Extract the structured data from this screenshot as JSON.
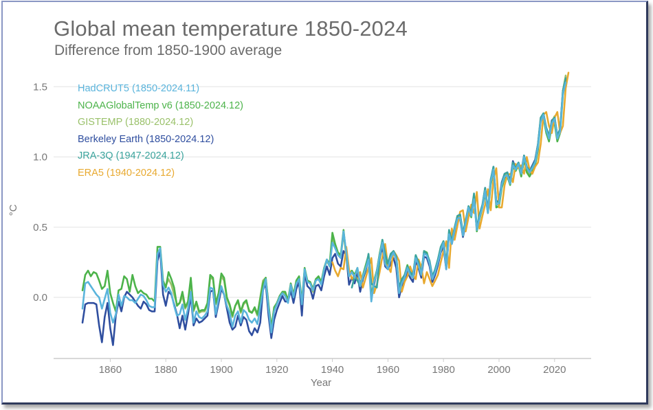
{
  "chart_data": {
    "type": "line",
    "title": "Global mean temperature 1850-2024",
    "subtitle": "Difference from 1850-1900 average",
    "xlabel": "Year",
    "ylabel": "°C",
    "xlim": [
      1846,
      2030
    ],
    "ylim": [
      -0.44,
      1.62
    ],
    "xticks": [
      1860,
      1880,
      1900,
      1920,
      1940,
      1960,
      1980,
      2000,
      2020
    ],
    "yticks": [
      0.0,
      0.5,
      1.0,
      1.5
    ],
    "ytick_labels": [
      "0.0",
      "0.5",
      "1.0",
      "1.5"
    ],
    "grid": "horizontal",
    "legend_position": "top-left",
    "series": [
      {
        "name": "HadCRUT5 (1850-2024.11)",
        "color": "#5ab4dc",
        "start": 1850,
        "values": [
          -0.08,
          0.1,
          0.11,
          0.08,
          0.05,
          0.02,
          0.0,
          -0.08,
          -0.01,
          0.06,
          -0.11,
          -0.18,
          -0.12,
          0.02,
          -0.06,
          0.01,
          0.0,
          -0.02,
          -0.02,
          -0.04,
          -0.01,
          0.02,
          0.01,
          -0.02,
          -0.06,
          -0.07,
          -0.07,
          0.31,
          0.35,
          0.09,
          0.04,
          0.07,
          0.03,
          -0.06,
          -0.13,
          -0.12,
          -0.05,
          -0.16,
          -0.08,
          0.04,
          -0.18,
          -0.1,
          -0.14,
          -0.15,
          -0.13,
          -0.1,
          0.07,
          0.06,
          -0.12,
          -0.01,
          0.08,
          0.02,
          -0.06,
          -0.11,
          -0.21,
          -0.13,
          -0.1,
          -0.18,
          -0.09,
          -0.11,
          -0.16,
          -0.18,
          -0.15,
          -0.19,
          -0.07,
          0.05,
          0.13,
          -0.08,
          -0.25,
          -0.1,
          -0.05,
          0.0,
          0.03,
          0.01,
          -0.04,
          0.09,
          0.0,
          0.1,
          0.13,
          -0.05,
          0.2,
          0.11,
          0.1,
          0.05,
          0.12,
          0.13,
          0.09,
          0.2,
          0.27,
          0.22,
          0.39,
          0.35,
          0.3,
          0.28,
          0.47,
          0.32,
          0.15,
          0.18,
          0.14,
          0.21,
          0.08,
          0.15,
          0.21,
          0.27,
          -0.03,
          0.11,
          0.18,
          0.3,
          0.39,
          0.24,
          0.2,
          0.28,
          0.32,
          0.27,
          0.03,
          0.1,
          0.14,
          0.21,
          0.16,
          0.14,
          0.28,
          0.23,
          0.16,
          0.31,
          0.3,
          0.24,
          0.13,
          0.18,
          0.25,
          0.33,
          0.39,
          0.2,
          0.45,
          0.38,
          0.48,
          0.56,
          0.57,
          0.44,
          0.53,
          0.64,
          0.58,
          0.7,
          0.48,
          0.57,
          0.64,
          0.76,
          0.6,
          0.82,
          0.91,
          0.66,
          0.67,
          0.8,
          0.86,
          0.87,
          0.81,
          0.94,
          0.91,
          0.95,
          0.88,
          1.0,
          0.92,
          0.89,
          0.92,
          0.96,
          1.07,
          1.25,
          1.3,
          1.19,
          1.13,
          1.24,
          1.27,
          1.13,
          1.18,
          1.45,
          1.53
        ]
      },
      {
        "name": "NOAAGlobalTemp v6 (1850-2024.12)",
        "color": "#4cb34a",
        "start": 1850,
        "values": [
          0.05,
          0.16,
          0.19,
          0.15,
          0.18,
          0.17,
          0.12,
          0.06,
          0.08,
          0.19,
          0.03,
          -0.04,
          -0.1,
          0.05,
          0.06,
          0.15,
          0.13,
          0.04,
          0.16,
          0.08,
          0.03,
          0.05,
          0.03,
          0.02,
          -0.01,
          -0.01,
          -0.03,
          0.36,
          0.36,
          0.12,
          0.07,
          0.18,
          0.13,
          0.07,
          -0.06,
          -0.04,
          0.04,
          -0.07,
          -0.03,
          0.14,
          -0.09,
          -0.03,
          -0.1,
          -0.09,
          -0.09,
          -0.04,
          0.16,
          0.14,
          -0.04,
          0.03,
          0.17,
          0.14,
          0.0,
          -0.05,
          -0.13,
          -0.06,
          -0.02,
          -0.1,
          -0.04,
          -0.02,
          -0.1,
          -0.11,
          -0.07,
          -0.12,
          -0.01,
          0.1,
          0.14,
          -0.05,
          -0.22,
          -0.07,
          -0.04,
          0.01,
          0.04,
          0.04,
          -0.02,
          0.1,
          0.02,
          0.12,
          0.15,
          -0.03,
          0.21,
          0.12,
          0.11,
          0.06,
          0.13,
          0.15,
          0.11,
          0.21,
          0.27,
          0.24,
          0.46,
          0.38,
          0.32,
          0.3,
          0.48,
          0.3,
          0.16,
          0.19,
          0.16,
          0.21,
          0.09,
          0.16,
          0.23,
          0.3,
          0.0,
          0.12,
          0.19,
          0.31,
          0.41,
          0.26,
          0.22,
          0.3,
          0.31,
          0.29,
          0.05,
          0.12,
          0.16,
          0.23,
          0.17,
          0.15,
          0.3,
          0.24,
          0.17,
          0.33,
          0.32,
          0.25,
          0.14,
          0.2,
          0.27,
          0.35,
          0.4,
          0.23,
          0.46,
          0.39,
          0.48,
          0.57,
          0.58,
          0.44,
          0.53,
          0.62,
          0.57,
          0.73,
          0.47,
          0.56,
          0.64,
          0.74,
          0.6,
          0.8,
          0.91,
          0.64,
          0.65,
          0.78,
          0.85,
          0.86,
          0.8,
          0.93,
          0.9,
          0.94,
          0.86,
          0.98,
          0.89,
          0.86,
          0.9,
          0.94,
          1.05,
          1.26,
          1.28,
          1.17,
          1.11,
          1.22,
          1.24,
          1.11,
          1.17,
          1.44,
          1.55
        ]
      },
      {
        "name": "GISTEMP (1880-2024.12)",
        "color": "#9ac16a",
        "start": 1880,
        "values": [
          0.08,
          0.13,
          0.09,
          0.02,
          -0.05,
          -0.04,
          0.01,
          -0.08,
          -0.04,
          0.12,
          -0.1,
          -0.04,
          -0.11,
          -0.1,
          -0.1,
          -0.05,
          0.14,
          0.13,
          -0.05,
          0.02,
          0.15,
          0.12,
          -0.01,
          -0.06,
          -0.14,
          -0.06,
          -0.03,
          -0.11,
          -0.05,
          -0.03,
          -0.09,
          -0.11,
          -0.08,
          -0.13,
          0.0,
          0.12,
          0.14,
          -0.06,
          -0.21,
          -0.08,
          -0.04,
          0.0,
          0.03,
          0.03,
          -0.02,
          0.08,
          0.01,
          0.11,
          0.13,
          -0.04,
          0.2,
          0.12,
          0.1,
          0.04,
          0.12,
          0.14,
          0.1,
          0.2,
          0.26,
          0.22,
          0.42,
          0.36,
          0.31,
          0.29,
          0.45,
          0.3,
          0.15,
          0.18,
          0.15,
          0.2,
          0.08,
          0.15,
          0.22,
          0.29,
          -0.01,
          0.11,
          0.18,
          0.31,
          0.4,
          0.25,
          0.21,
          0.29,
          0.31,
          0.28,
          0.04,
          0.11,
          0.15,
          0.22,
          0.16,
          0.14,
          0.29,
          0.23,
          0.16,
          0.32,
          0.31,
          0.25,
          0.13,
          0.19,
          0.26,
          0.34,
          0.4,
          0.22,
          0.46,
          0.39,
          0.49,
          0.58,
          0.59,
          0.45,
          0.54,
          0.63,
          0.58,
          0.73,
          0.48,
          0.57,
          0.65,
          0.76,
          0.61,
          0.82,
          0.92,
          0.66,
          0.66,
          0.8,
          0.87,
          0.88,
          0.81,
          0.95,
          0.91,
          0.95,
          0.88,
          1.0,
          0.91,
          0.88,
          0.92,
          0.96,
          1.08,
          1.27,
          1.31,
          1.2,
          1.14,
          1.25,
          1.29,
          1.14,
          1.19,
          1.47,
          1.58
        ]
      },
      {
        "name": "Berkeley Earth (1850-2024.12)",
        "color": "#2f4e9f",
        "start": 1850,
        "values": [
          -0.18,
          -0.05,
          -0.04,
          -0.04,
          -0.04,
          -0.05,
          -0.2,
          -0.32,
          -0.14,
          -0.04,
          -0.22,
          -0.34,
          -0.13,
          -0.03,
          -0.1,
          0.0,
          0.04,
          0.02,
          0.0,
          -0.03,
          -0.06,
          -0.08,
          -0.03,
          -0.05,
          -0.09,
          -0.1,
          -0.1,
          0.26,
          0.33,
          0.02,
          -0.06,
          0.04,
          0.02,
          -0.05,
          -0.12,
          -0.22,
          -0.13,
          -0.23,
          -0.12,
          0.01,
          -0.2,
          -0.15,
          -0.18,
          -0.17,
          -0.15,
          -0.13,
          0.04,
          0.05,
          -0.14,
          -0.04,
          0.06,
          0.02,
          -0.08,
          -0.18,
          -0.23,
          -0.21,
          -0.13,
          -0.2,
          -0.14,
          -0.16,
          -0.24,
          -0.27,
          -0.22,
          -0.25,
          -0.18,
          0.05,
          0.1,
          -0.13,
          -0.29,
          -0.16,
          -0.09,
          -0.04,
          0.01,
          -0.03,
          -0.03,
          0.05,
          -0.04,
          0.06,
          0.11,
          -0.13,
          0.17,
          0.08,
          0.06,
          -0.01,
          0.08,
          0.09,
          0.05,
          0.15,
          0.22,
          0.16,
          0.28,
          0.31,
          0.24,
          0.22,
          0.33,
          0.3,
          0.09,
          0.14,
          0.1,
          0.17,
          0.04,
          0.13,
          0.19,
          0.29,
          0.01,
          0.09,
          0.19,
          0.28,
          0.36,
          0.22,
          0.2,
          0.24,
          0.28,
          0.21,
          0.0,
          0.08,
          0.12,
          0.19,
          0.14,
          0.11,
          0.26,
          0.21,
          0.14,
          0.29,
          0.28,
          0.22,
          0.11,
          0.16,
          0.23,
          0.32,
          0.36,
          0.2,
          0.45,
          0.38,
          0.47,
          0.55,
          0.56,
          0.43,
          0.52,
          0.63,
          0.58,
          0.71,
          0.49,
          0.58,
          0.65,
          0.78,
          0.61,
          0.83,
          0.93,
          0.68,
          0.69,
          0.82,
          0.88,
          0.89,
          0.83,
          0.97,
          0.92,
          0.96,
          0.89,
          1.01,
          0.93,
          0.9,
          0.94,
          0.98,
          1.09,
          1.27,
          1.31,
          1.2,
          1.15,
          1.26,
          1.28,
          1.15,
          1.2,
          1.47,
          1.57
        ]
      },
      {
        "name": "JRA-3Q (1947-2024.12)",
        "color": "#3aa39c",
        "start": 1947,
        "values": [
          0.07,
          0.15,
          0.12,
          0.08,
          0.14,
          0.2,
          0.31,
          0.1,
          0.08,
          0.07,
          0.27,
          0.41,
          0.31,
          0.24,
          0.31,
          0.33,
          0.29,
          0.07,
          0.13,
          0.16,
          0.22,
          0.18,
          0.16,
          0.3,
          0.25,
          0.17,
          0.33,
          0.31,
          0.26,
          0.15,
          0.2,
          0.27,
          0.36,
          0.4,
          0.24,
          0.48,
          0.4,
          0.5,
          0.58,
          0.59,
          0.46,
          0.55,
          0.65,
          0.6,
          0.74,
          0.5,
          0.59,
          0.66,
          0.78,
          0.62,
          0.84,
          0.93,
          0.68,
          0.68,
          0.81,
          0.88,
          0.89,
          0.82,
          0.96,
          0.92,
          0.96,
          0.89,
          1.01,
          0.93,
          0.9,
          0.93,
          0.97,
          1.09,
          1.28,
          1.31,
          1.21,
          1.15,
          1.25,
          1.28,
          1.15,
          1.2,
          1.47,
          1.56
        ]
      },
      {
        "name": "ERA5 (1940-2024.12)",
        "color": "#e8a92f",
        "start": 1940,
        "values": [
          0.25,
          0.19,
          0.15,
          0.21,
          0.2,
          0.36,
          0.2,
          0.13,
          0.16,
          0.12,
          0.18,
          0.07,
          0.14,
          0.21,
          0.28,
          0.03,
          0.09,
          0.18,
          0.29,
          0.38,
          0.22,
          0.18,
          0.33,
          0.3,
          0.26,
          0.04,
          0.11,
          0.15,
          0.22,
          0.16,
          0.13,
          0.27,
          0.22,
          0.1,
          0.18,
          0.13,
          0.08,
          0.12,
          0.16,
          0.25,
          0.33,
          0.4,
          0.21,
          0.49,
          0.41,
          0.51,
          0.61,
          0.62,
          0.47,
          0.57,
          0.66,
          0.6,
          0.75,
          0.49,
          0.58,
          0.66,
          0.77,
          0.62,
          0.84,
          0.92,
          0.64,
          0.64,
          0.8,
          0.87,
          0.88,
          0.82,
          0.95,
          0.92,
          0.94,
          0.88,
          1.0,
          0.91,
          0.88,
          0.93,
          0.96,
          1.09,
          1.3,
          1.32,
          1.22,
          1.17,
          1.28,
          1.32,
          1.17,
          1.22,
          1.49,
          1.6
        ]
      }
    ]
  }
}
